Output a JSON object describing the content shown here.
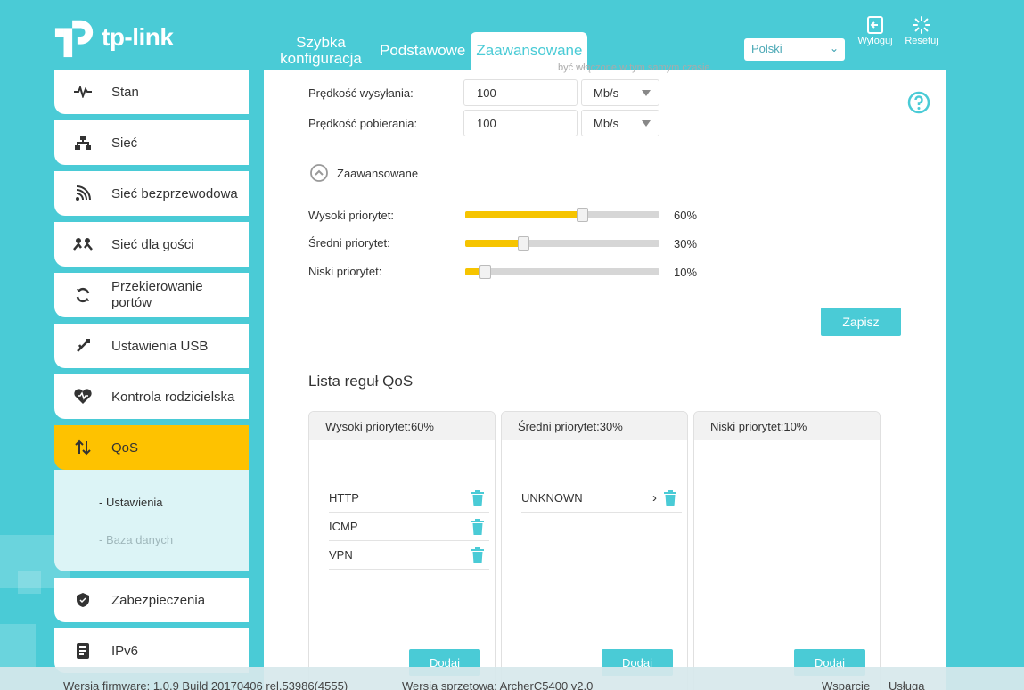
{
  "brand": {
    "logo_text": "tp-link"
  },
  "header": {
    "tabs": [
      {
        "label": "Szybka konfiguracja",
        "active": false
      },
      {
        "label": "Podstawowe",
        "active": false
      },
      {
        "label": "Zaawansowane",
        "active": true
      }
    ],
    "language": "Polski",
    "logout_label": "Wyloguj",
    "reset_label": "Resetuj"
  },
  "sidebar": {
    "items": [
      {
        "label": "Stan",
        "icon": "pulse-icon"
      },
      {
        "label": "Sieć",
        "icon": "network-icon"
      },
      {
        "label": "Sieć bezprzewodowa",
        "icon": "wireless-icon"
      },
      {
        "label": "Sieć dla gości",
        "icon": "guest-network-icon"
      },
      {
        "label": "Przekierowanie portów",
        "icon": "port-forward-icon"
      },
      {
        "label": "Ustawienia USB",
        "icon": "usb-icon"
      },
      {
        "label": "Kontrola rodzicielska",
        "icon": "heart-icon"
      },
      {
        "label": "QoS",
        "icon": "qos-arrows-icon",
        "active": true
      },
      {
        "label": "Zabezpieczenia",
        "icon": "shield-icon"
      },
      {
        "label": "IPv6",
        "icon": "ipv6-icon"
      }
    ],
    "subitems": [
      {
        "label": "Ustawienia",
        "selected": true
      },
      {
        "label": "Baza danych",
        "selected": false
      }
    ]
  },
  "main": {
    "faded_text": "być włączone w tym samym czasie.",
    "upload_label": "Prędkość wysyłania:",
    "upload_value": "100",
    "upload_unit": "Mb/s",
    "download_label": "Prędkość pobierania:",
    "download_value": "100",
    "download_unit": "Mb/s",
    "advanced_label": "Zaawansowane",
    "sliders": [
      {
        "label": "Wysoki priorytet:",
        "value_text": "60%",
        "level": 0.6
      },
      {
        "label": "Średni priorytet:",
        "value_text": "30%",
        "level": 0.3
      },
      {
        "label": "Niski priorytet:",
        "value_text": "10%",
        "level": 0.1
      }
    ],
    "save_label": "Zapisz",
    "qos_list_title": "Lista reguł QoS",
    "columns": [
      {
        "header": "Wysoki priorytet:60%",
        "rules": [
          "HTTP",
          "ICMP",
          "VPN"
        ],
        "add_label": "Dodaj"
      },
      {
        "header": "Średni priorytet:30%",
        "rules": [
          "UNKNOWN"
        ],
        "add_label": "Dodaj"
      },
      {
        "header": "Niski priorytet:10%",
        "rules": [],
        "add_label": "Dodaj"
      }
    ]
  },
  "footer": {
    "firmware": "Wersja firmware: 1.0.9 Build 20170406 rel.53986(4555)",
    "hardware": "Wersja sprzętowa: ArcherC5400 v2.0",
    "support": "Wsparcie",
    "service": "Usługa"
  },
  "colors": {
    "accent": "#4acbd6",
    "highlight": "#fec200",
    "slider_fill": "#f6c400"
  }
}
